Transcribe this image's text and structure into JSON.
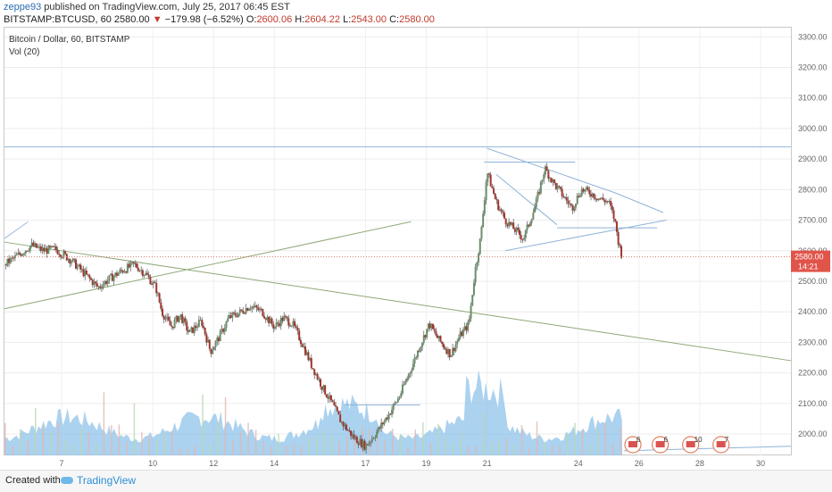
{
  "header": {
    "user": "zeppe93",
    "published_text": "published on TradingView.com, July 25, 2017 06:45 EST",
    "symbol_line": {
      "symbol": "BITSTAMP:BTCUSD, 60",
      "last": "2580.00",
      "change": "−179.98 (−6.52%)",
      "o_label": "O:",
      "o_value": "2600.06",
      "h_label": "H:",
      "h_value": "2604.22",
      "l_label": "L:",
      "l_value": "2543.00",
      "c_label": "C:",
      "c_value": "2580.00"
    }
  },
  "legend": {
    "series": "Bitcoin / Dollar, 60, BITSTAMP",
    "volume": "Vol (20)"
  },
  "price_badge": {
    "value": "2580.00",
    "countdown": "14:21"
  },
  "footer": {
    "created_with": "Created with",
    "brand": "TradingView"
  },
  "colors": {
    "up": "#6b8e6b",
    "down": "#a0362e",
    "wick": "#555555",
    "volume": "#8fc3e9",
    "blue_line": "#8fb4d8",
    "green_line": "#8fa878",
    "price_line": "#d07a6a",
    "badge": "#e0544a",
    "axis_text": "#666666"
  },
  "chart_data": {
    "type": "candlestick",
    "y_axis": {
      "range": [
        1930,
        3330
      ],
      "ticks": [
        "3300.00",
        "3200.00",
        "3100.00",
        "3000.00",
        "2900.00",
        "2800.00",
        "2700.00",
        "2600.00",
        "2500.00",
        "2400.00",
        "2300.00",
        "2200.00",
        "2100.00",
        "2000.00"
      ]
    },
    "x_axis": {
      "range_days": [
        5.12,
        31.0
      ],
      "ticks": [
        {
          "label": "7",
          "day": 7
        },
        {
          "label": "10",
          "day": 10
        },
        {
          "label": "12",
          "day": 12
        },
        {
          "label": "14",
          "day": 14
        },
        {
          "label": "17",
          "day": 17
        },
        {
          "label": "19",
          "day": 19
        },
        {
          "label": "21",
          "day": 21
        },
        {
          "label": "24",
          "day": 24
        },
        {
          "label": "26",
          "day": 26
        },
        {
          "label": "28",
          "day": 28
        },
        {
          "label": "30",
          "day": 30
        }
      ]
    },
    "price_path": [
      [
        5.12,
        2555
      ],
      [
        5.5,
        2580
      ],
      [
        6.0,
        2618
      ],
      [
        6.4,
        2600
      ],
      [
        6.8,
        2605
      ],
      [
        7.3,
        2570
      ],
      [
        7.8,
        2520
      ],
      [
        8.2,
        2480
      ],
      [
        8.6,
        2510
      ],
      [
        9.0,
        2535
      ],
      [
        9.4,
        2555
      ],
      [
        9.8,
        2520
      ],
      [
        10.1,
        2480
      ],
      [
        10.3,
        2400
      ],
      [
        10.6,
        2350
      ],
      [
        10.9,
        2390
      ],
      [
        11.2,
        2330
      ],
      [
        11.6,
        2370
      ],
      [
        11.9,
        2270
      ],
      [
        12.2,
        2320
      ],
      [
        12.5,
        2380
      ],
      [
        12.9,
        2400
      ],
      [
        13.2,
        2420
      ],
      [
        13.6,
        2400
      ],
      [
        14.0,
        2350
      ],
      [
        14.3,
        2380
      ],
      [
        14.6,
        2360
      ],
      [
        14.9,
        2300
      ],
      [
        15.2,
        2230
      ],
      [
        15.6,
        2150
      ],
      [
        15.9,
        2100
      ],
      [
        16.2,
        2040
      ],
      [
        16.6,
        1990
      ],
      [
        17.0,
        1960
      ],
      [
        17.4,
        2010
      ],
      [
        17.8,
        2070
      ],
      [
        18.1,
        2120
      ],
      [
        18.4,
        2190
      ],
      [
        18.8,
        2290
      ],
      [
        19.1,
        2360
      ],
      [
        19.4,
        2310
      ],
      [
        19.8,
        2260
      ],
      [
        20.1,
        2320
      ],
      [
        20.4,
        2360
      ],
      [
        20.6,
        2530
      ],
      [
        20.8,
        2650
      ],
      [
        21.0,
        2860
      ],
      [
        21.3,
        2760
      ],
      [
        21.6,
        2700
      ],
      [
        21.9,
        2670
      ],
      [
        22.2,
        2640
      ],
      [
        22.6,
        2750
      ],
      [
        22.9,
        2870
      ],
      [
        23.2,
        2820
      ],
      [
        23.5,
        2780
      ],
      [
        23.8,
        2740
      ],
      [
        24.1,
        2800
      ],
      [
        24.4,
        2790
      ],
      [
        24.7,
        2770
      ],
      [
        25.0,
        2760
      ],
      [
        25.2,
        2700
      ],
      [
        25.35,
        2615
      ],
      [
        25.45,
        2580
      ]
    ],
    "ohlc_last": {
      "open": 2600.06,
      "high": 2604.22,
      "low": 2543.0,
      "close": 2580.0
    },
    "last_price": 2580.0
  }
}
